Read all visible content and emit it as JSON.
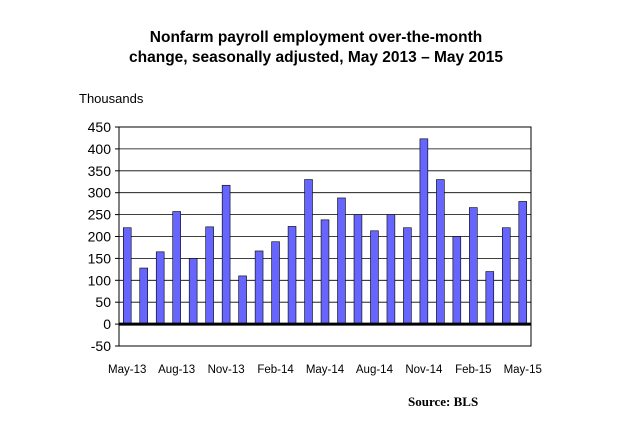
{
  "chart_data": {
    "type": "bar",
    "title_line1": "Nonfarm payroll employment over-the-month",
    "title_line2": "change, seasonally adjusted, May 2013 – May 2015",
    "ylabel": "Thousands",
    "source": "Source:  BLS",
    "ylim": [
      -50,
      450
    ],
    "yticks": [
      450,
      400,
      350,
      300,
      250,
      200,
      150,
      100,
      50,
      0,
      -50
    ],
    "categories": [
      "May-13",
      "Jun-13",
      "Jul-13",
      "Aug-13",
      "Sep-13",
      "Oct-13",
      "Nov-13",
      "Dec-13",
      "Jan-14",
      "Feb-14",
      "Mar-14",
      "Apr-14",
      "May-14",
      "Jun-14",
      "Jul-14",
      "Aug-14",
      "Sep-14",
      "Oct-14",
      "Nov-14",
      "Dec-14",
      "Jan-15",
      "Feb-15",
      "Mar-15",
      "Apr-15",
      "May-15"
    ],
    "xtick_labels": [
      "May-13",
      "Aug-13",
      "Nov-13",
      "Feb-14",
      "May-14",
      "Aug-14",
      "Nov-14",
      "Feb-15",
      "May-15"
    ],
    "values": [
      220,
      128,
      165,
      257,
      150,
      222,
      317,
      110,
      167,
      188,
      223,
      330,
      238,
      288,
      250,
      213,
      250,
      220,
      423,
      330,
      200,
      266,
      120,
      220,
      280
    ],
    "bar_color": "#6666ff",
    "grid": true
  }
}
